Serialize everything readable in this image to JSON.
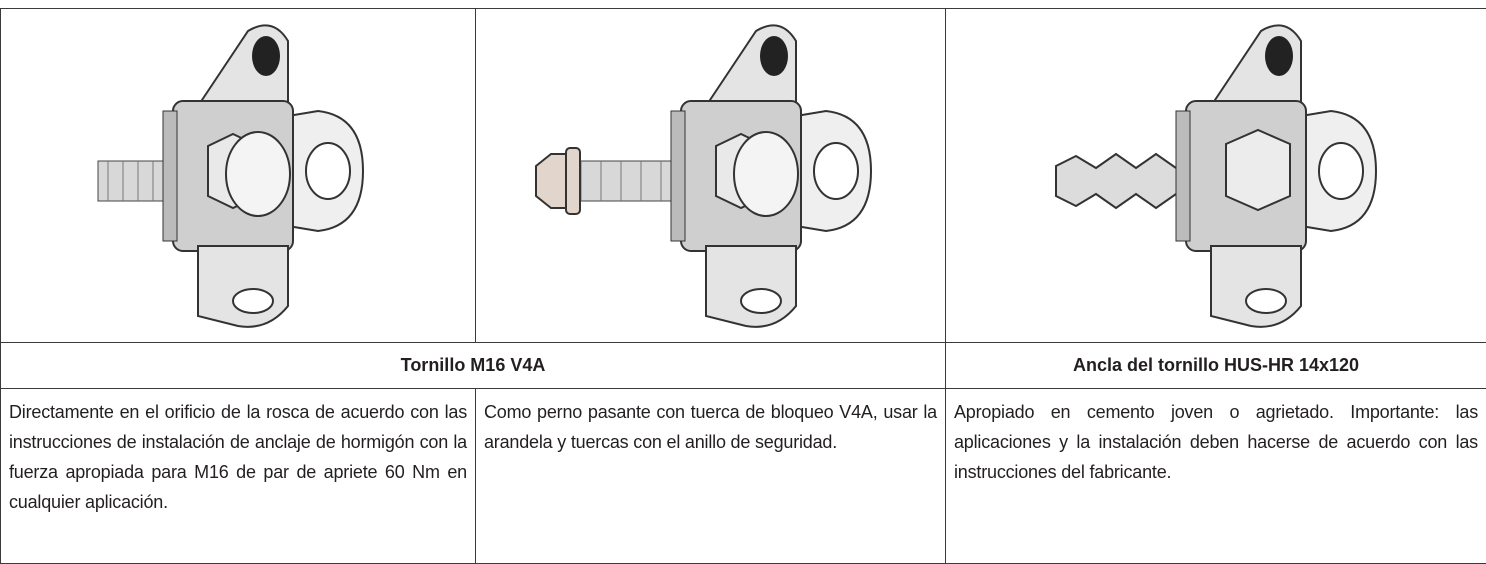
{
  "table": {
    "headers": [
      "Tornillo M16 V4A",
      "Ancla del tornillo HUS-HR 14x120"
    ],
    "descriptions": [
      "Directamente en el orificio de la rosca de acuerdo con las instrucciones de instalación de anclaje de hormigón con la fuerza apropiada para M16 de par de apriete 60 Nm en cualquier aplicación.",
      "Como perno pasante con tuerca de bloqueo V4A, usar la arandela y tuercas con el anillo de seguridad.",
      "Apropiado en cemento joven o agrietado. Importante: las aplicaciones y la instalación deben hacerse de acuerdo con las instrucciones del fabricante."
    ]
  }
}
